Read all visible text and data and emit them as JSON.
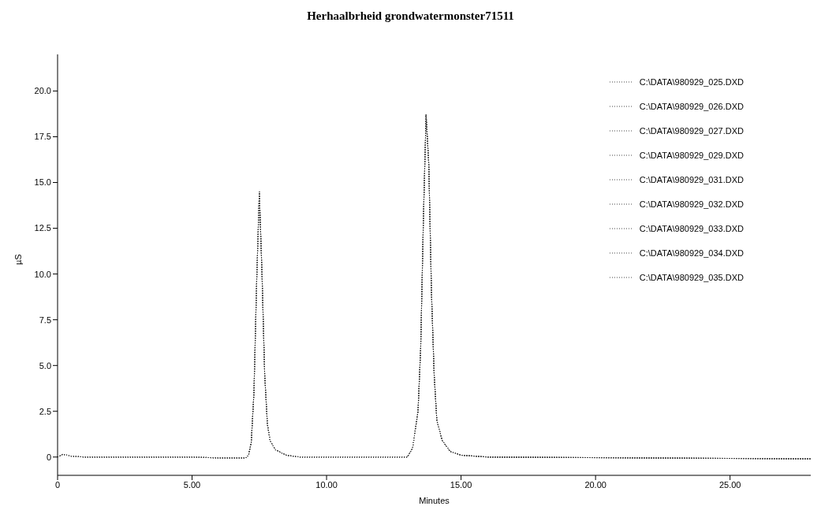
{
  "chart_data": {
    "type": "line",
    "title": "Herhaalbrheid grondwatermonster71511",
    "xlabel": "Minutes",
    "ylabel": "µS",
    "x": [
      0,
      0.2,
      0.5,
      1,
      5,
      6,
      7,
      7.1,
      7.2,
      7.3,
      7.4,
      7.5,
      7.6,
      7.7,
      7.8,
      7.9,
      8.1,
      8.5,
      9,
      13,
      13.2,
      13.4,
      13.5,
      13.6,
      13.7,
      13.8,
      13.9,
      14.0,
      14.1,
      14.3,
      14.6,
      15,
      16,
      28
    ],
    "series": [
      {
        "name": "C:\\DATA\\980929_025.DXD",
        "color": "#444444",
        "values": [
          0,
          0.15,
          0.05,
          0,
          0,
          -0.05,
          -0.05,
          0.1,
          0.8,
          3.5,
          9.5,
          14.5,
          10,
          4.5,
          1.8,
          0.9,
          0.4,
          0.1,
          0,
          0,
          0.5,
          2.5,
          6,
          13,
          18.7,
          16,
          9,
          4.5,
          2,
          0.9,
          0.3,
          0.1,
          0,
          -0.1
        ]
      },
      {
        "name": "C:\\DATA\\980929_026.DXD",
        "color": "#444444",
        "values": [
          0,
          0.15,
          0.05,
          0,
          0,
          -0.05,
          -0.05,
          0.1,
          0.8,
          3.5,
          9.5,
          14.5,
          10,
          4.5,
          1.8,
          0.9,
          0.4,
          0.1,
          0,
          0,
          0.5,
          2.5,
          6,
          13,
          18.7,
          16,
          9,
          4.5,
          2,
          0.9,
          0.3,
          0.1,
          0,
          -0.1
        ]
      },
      {
        "name": "C:\\DATA\\980929_027.DXD",
        "color": "#444444",
        "values": [
          0,
          0.15,
          0.05,
          0,
          0,
          -0.05,
          -0.05,
          0.1,
          0.8,
          3.5,
          9.5,
          14.5,
          10,
          4.5,
          1.8,
          0.9,
          0.4,
          0.1,
          0,
          0,
          0.5,
          2.5,
          6,
          13,
          18.7,
          16,
          9,
          4.5,
          2,
          0.9,
          0.3,
          0.1,
          0,
          -0.1
        ]
      },
      {
        "name": "C:\\DATA\\980929_029.DXD",
        "color": "#444444",
        "values": [
          0,
          0.15,
          0.05,
          0,
          0,
          -0.05,
          -0.05,
          0.1,
          0.8,
          3.5,
          9.5,
          14.5,
          10,
          4.5,
          1.8,
          0.9,
          0.4,
          0.1,
          0,
          0,
          0.5,
          2.5,
          6,
          13,
          18.7,
          16,
          9,
          4.5,
          2,
          0.9,
          0.3,
          0.1,
          0,
          -0.1
        ]
      },
      {
        "name": "C:\\DATA\\980929_031.DXD",
        "color": "#444444",
        "values": [
          0,
          0.15,
          0.05,
          0,
          0,
          -0.05,
          -0.05,
          0.1,
          0.8,
          3.5,
          9.5,
          14.5,
          10,
          4.5,
          1.8,
          0.9,
          0.4,
          0.1,
          0,
          0,
          0.5,
          2.5,
          6,
          13,
          18.7,
          16,
          9,
          4.5,
          2,
          0.9,
          0.3,
          0.1,
          0,
          -0.1
        ]
      },
      {
        "name": "C:\\DATA\\980929_032.DXD",
        "color": "#444444",
        "values": [
          0,
          0.15,
          0.05,
          0,
          0,
          -0.05,
          -0.05,
          0.1,
          0.8,
          3.5,
          9.5,
          14.5,
          10,
          4.5,
          1.8,
          0.9,
          0.4,
          0.1,
          0,
          0,
          0.5,
          2.5,
          6,
          13,
          18.7,
          16,
          9,
          4.5,
          2,
          0.9,
          0.3,
          0.1,
          0,
          -0.1
        ]
      },
      {
        "name": "C:\\DATA\\980929_033.DXD",
        "color": "#444444",
        "values": [
          0,
          0.15,
          0.05,
          0,
          0,
          -0.05,
          -0.05,
          0.1,
          0.8,
          3.5,
          9.5,
          14.5,
          10,
          4.5,
          1.8,
          0.9,
          0.4,
          0.1,
          0,
          0,
          0.5,
          2.5,
          6,
          13,
          18.7,
          16,
          9,
          4.5,
          2,
          0.9,
          0.3,
          0.1,
          0,
          -0.1
        ]
      },
      {
        "name": "C:\\DATA\\980929_034.DXD",
        "color": "#444444",
        "values": [
          0,
          0.15,
          0.05,
          0,
          0,
          -0.05,
          -0.05,
          0.1,
          0.8,
          3.5,
          9.5,
          14.5,
          10,
          4.5,
          1.8,
          0.9,
          0.4,
          0.1,
          0,
          0,
          0.5,
          2.5,
          6,
          13,
          18.7,
          16,
          9,
          4.5,
          2,
          0.9,
          0.3,
          0.1,
          0,
          -0.1
        ]
      },
      {
        "name": "C:\\DATA\\980929_035.DXD",
        "color": "#444444",
        "values": [
          0,
          0.15,
          0.05,
          0,
          0,
          -0.05,
          -0.05,
          0.1,
          0.8,
          3.5,
          9.5,
          14.5,
          10,
          4.5,
          1.8,
          0.9,
          0.4,
          0.1,
          0,
          0,
          0.5,
          2.5,
          6,
          13,
          18.7,
          16,
          9,
          4.5,
          2,
          0.9,
          0.3,
          0.1,
          0,
          -0.1
        ]
      }
    ],
    "xlim": [
      0,
      28
    ],
    "xticks": [
      0,
      {
        "value": 5,
        "label": "5.00"
      },
      {
        "value": 10,
        "label": "10.00"
      },
      {
        "value": 15,
        "label": "15.00"
      },
      {
        "value": 20,
        "label": "20.00"
      },
      {
        "value": 25,
        "label": "25.00"
      }
    ],
    "ylim": [
      -1,
      22
    ],
    "yticks": [
      0,
      {
        "value": 2.5,
        "label": "2.5"
      },
      {
        "value": 5,
        "label": "5.0"
      },
      {
        "value": 7.5,
        "label": "7.5"
      },
      {
        "value": 10,
        "label": "10.0"
      },
      {
        "value": 12.5,
        "label": "12.5"
      },
      {
        "value": 15,
        "label": "15.0"
      },
      {
        "value": 17.5,
        "label": "17.5"
      },
      {
        "value": 20,
        "label": "20.0"
      }
    ],
    "grid": false,
    "legend": "top right",
    "marker": "none",
    "line_style": "dotted"
  }
}
